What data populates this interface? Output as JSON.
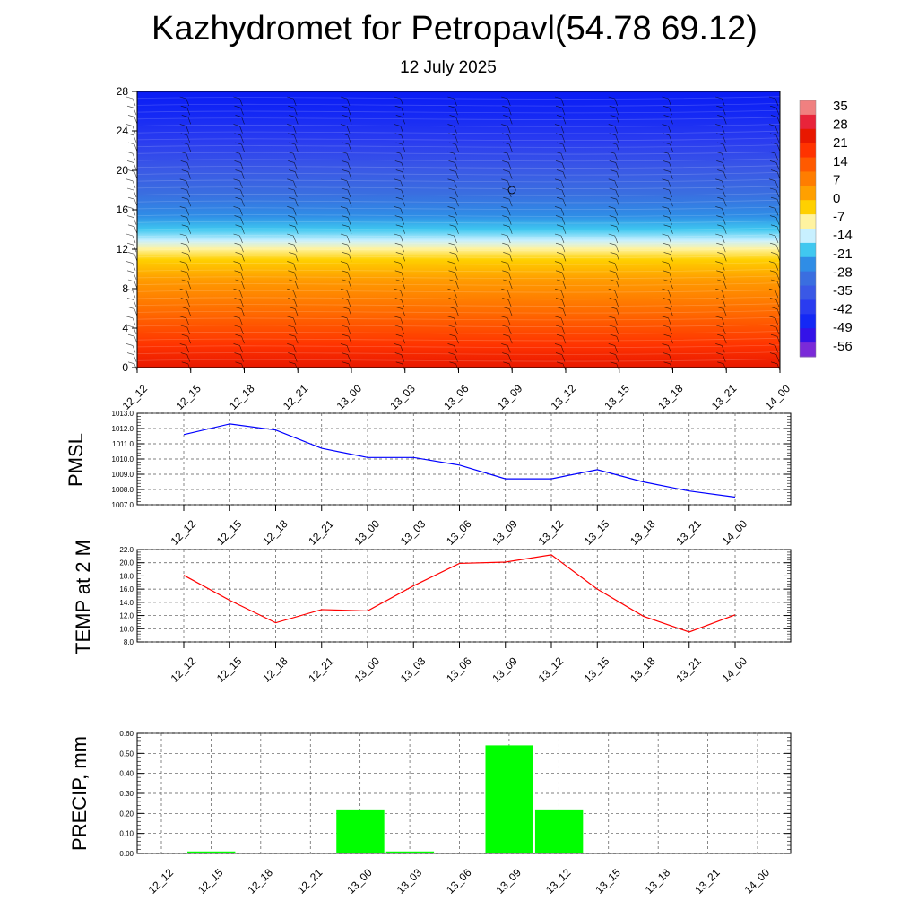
{
  "header": {
    "title": "Kazhydromet for Petropavl(54.78 69.12)",
    "subtitle": "12 July 2025"
  },
  "colors": {
    "pmsl_line": "#0000ff",
    "temp_line": "#ff0000",
    "precip_bar": "#00ff00",
    "grid": "#000000"
  },
  "chart_data": [
    {
      "type": "heatmap",
      "title": "",
      "categories": [
        "12_12",
        "12_15",
        "12_18",
        "12_21",
        "13_00",
        "13_03",
        "13_06",
        "13_09",
        "13_12",
        "13_15",
        "13_18",
        "13_21",
        "14_00"
      ],
      "ylim": [
        0,
        28
      ],
      "yticks": [
        "0",
        "4",
        "8",
        "12",
        "16",
        "20",
        "24",
        "28"
      ],
      "colorbar": {
        "labels": [
          "35",
          "28",
          "21",
          "14",
          "7",
          "0",
          "-7",
          "-14",
          "-21",
          "-28",
          "-35",
          "-42",
          "-49",
          "-56"
        ]
      },
      "wind_barbs": true
    },
    {
      "type": "line",
      "ylabel": "PMSL",
      "categories": [
        "12_12",
        "12_15",
        "12_18",
        "12_21",
        "13_00",
        "13_03",
        "13_06",
        "13_09",
        "13_12",
        "13_15",
        "13_18",
        "13_21",
        "14_00"
      ],
      "values": [
        1011.6,
        1012.3,
        1011.9,
        1010.7,
        1010.1,
        1010.1,
        1009.6,
        1008.7,
        1008.7,
        1009.3,
        1008.5,
        1007.9,
        1007.5
      ],
      "ylim": [
        1007.0,
        1013.0
      ],
      "yticks": [
        "1007.0",
        "1008.0",
        "1009.0",
        "1010.0",
        "1011.0",
        "1012.0",
        "1013.0"
      ]
    },
    {
      "type": "line",
      "ylabel": "TEMP at 2 M",
      "categories": [
        "12_12",
        "12_15",
        "12_18",
        "12_21",
        "13_00",
        "13_03",
        "13_06",
        "13_09",
        "13_12",
        "13_15",
        "13_18",
        "13_21",
        "14_00"
      ],
      "values": [
        18.1,
        14.3,
        10.9,
        12.9,
        12.7,
        16.5,
        19.9,
        20.1,
        21.2,
        16.0,
        11.9,
        9.5,
        12.1
      ],
      "ylim": [
        8.0,
        22.0
      ],
      "yticks": [
        "8.0",
        "10.0",
        "12.0",
        "14.0",
        "16.0",
        "18.0",
        "20.0",
        "22.0"
      ]
    },
    {
      "type": "bar",
      "ylabel": "PRECIP, mm",
      "categories": [
        "12_12",
        "12_15",
        "12_18",
        "12_21",
        "13_00",
        "13_03",
        "13_06",
        "13_09",
        "13_12",
        "13_15",
        "13_18",
        "13_21",
        "14_00"
      ],
      "values": [
        0.0,
        0.01,
        0.0,
        0.0,
        0.22,
        0.01,
        0.0,
        0.54,
        0.22,
        0.0,
        0.0,
        0.0,
        0.0
      ],
      "ylim": [
        0.0,
        0.6
      ],
      "yticks": [
        "0.00",
        "0.10",
        "0.20",
        "0.30",
        "0.40",
        "0.50",
        "0.60"
      ]
    }
  ]
}
